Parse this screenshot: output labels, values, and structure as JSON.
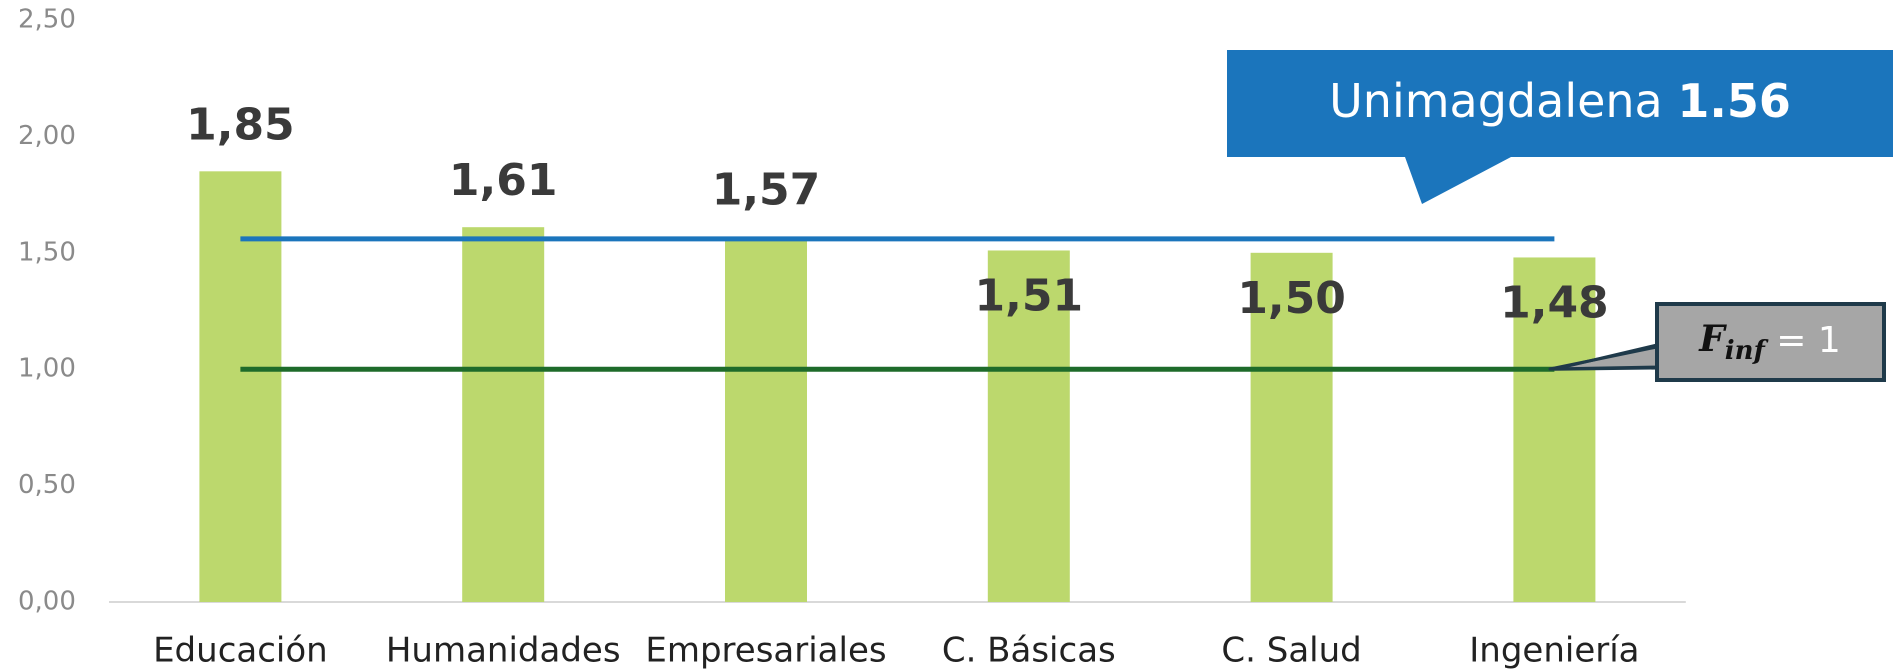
{
  "chart_data": {
    "type": "bar",
    "categories": [
      "Educación",
      "Humanidades",
      "Empresariales",
      "C. Básicas",
      "C. Salud",
      "Ingeniería"
    ],
    "values": [
      1.85,
      1.61,
      1.57,
      1.51,
      1.5,
      1.48
    ],
    "value_labels": [
      "1,85",
      "1,61",
      "1,57",
      "1,51",
      "1,50",
      "1,48"
    ],
    "color": "#bcd86d",
    "ylim": [
      0,
      2.5
    ],
    "yticks": [
      {
        "value": 0,
        "label": "0,00"
      },
      {
        "value": 0.5,
        "label": "0,50"
      },
      {
        "value": 1,
        "label": "1,00"
      },
      {
        "value": 1.5,
        "label": "1,50"
      },
      {
        "value": 2,
        "label": "2,00"
      },
      {
        "value": 2.5,
        "label": "2,50"
      }
    ],
    "grid": false,
    "reference_lines": [
      {
        "name": "Unimagdalena",
        "value": 1.56,
        "color": "#1b75bc"
      },
      {
        "symbol": "F",
        "subscript": "inf",
        "relation": "=",
        "value": 1,
        "color": "#1e6b2a"
      }
    ]
  }
}
